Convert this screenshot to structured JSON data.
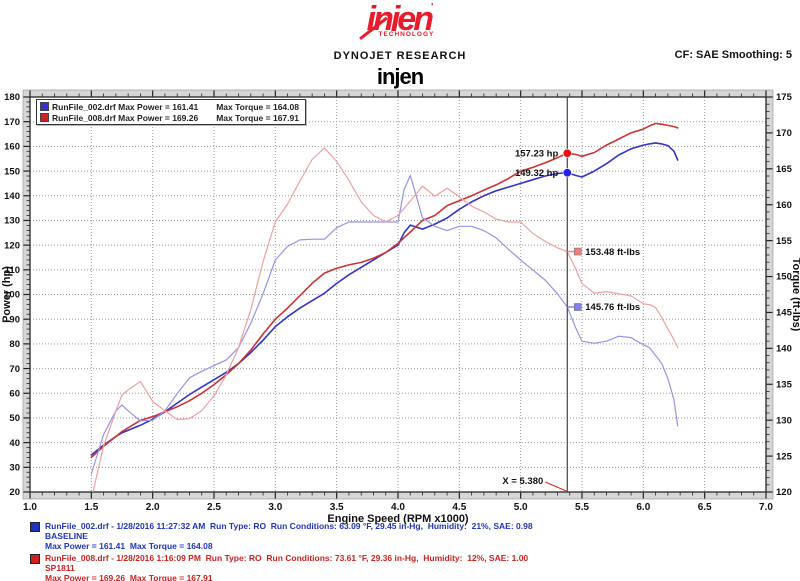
{
  "header": {
    "logo_brand": "injen",
    "logo_tm": "'",
    "logo_sub": "TECHNOLOGY",
    "dynojet": "DYNOJET RESEARCH",
    "cf_label": "CF: SAE  Smoothing: 5",
    "graph_title": "injen"
  },
  "chart_data": {
    "type": "line",
    "title": "injen",
    "xlabel": "Engine Speed (RPM x1000)",
    "ylabel_left": "Power (hp)",
    "ylabel_right": "Torque (ft-lbs)",
    "x_range": [
      1.0,
      7.0
    ],
    "x_major_step": 0.5,
    "x_minor_step": 0.1,
    "y_left_range": [
      20,
      180
    ],
    "y_left_major_step": 10,
    "y_left_minor_step": 2,
    "y_right_range": [
      120,
      175
    ],
    "y_right_major_step": 5,
    "y_right_minor_step": 1,
    "grid": "dotted",
    "cursor_x": 5.38,
    "cursor_label": "X = 5.380",
    "colors": {
      "power_baseline": "#3333cc",
      "power_sp1811": "#cc3333",
      "torque_baseline": "#9494e8",
      "torque_sp1811": "#efa0a0",
      "grid": "#999999",
      "cursor": "#444444",
      "band_fill": "#d6d6d6",
      "frame": "#333333"
    },
    "legend": [
      {
        "color": "#3333cc",
        "label_power": "RunFile_002.drf Max Power = 161.41",
        "label_torque": "Max Torque = 164.08"
      },
      {
        "color": "#cc2222",
        "label_power": "RunFile_008.drf Max Power = 169.26",
        "label_torque": "Max Torque = 167.91"
      }
    ],
    "series": [
      {
        "name": "power_baseline",
        "axis": "left",
        "color": "#3333cc",
        "width": 1.6,
        "x": [
          1.5,
          1.6,
          1.7,
          1.75,
          1.8,
          1.9,
          2.0,
          2.1,
          2.2,
          2.3,
          2.4,
          2.5,
          2.6,
          2.7,
          2.8,
          2.9,
          3.0,
          3.1,
          3.2,
          3.3,
          3.4,
          3.5,
          3.6,
          3.7,
          3.8,
          3.9,
          4.0,
          4.05,
          4.1,
          4.2,
          4.3,
          4.4,
          4.5,
          4.6,
          4.7,
          4.8,
          4.9,
          5.0,
          5.1,
          5.2,
          5.3,
          5.38,
          5.45,
          5.5,
          5.6,
          5.7,
          5.8,
          5.9,
          6.0,
          6.05,
          6.1,
          6.15,
          6.2,
          6.25,
          6.28
        ],
        "y": [
          35,
          39,
          42.5,
          44,
          45,
          47,
          49.5,
          52.5,
          56,
          59.5,
          62.5,
          65.5,
          68.5,
          72,
          76.5,
          81.5,
          87,
          91,
          94.5,
          97.5,
          100.5,
          104.5,
          108,
          111,
          114,
          117,
          120,
          125,
          128.1,
          126.5,
          128.5,
          131,
          134.5,
          137.5,
          140,
          142,
          143.5,
          145,
          146.5,
          148,
          149,
          149.32,
          148.2,
          147.6,
          150,
          153,
          156.5,
          159,
          160.5,
          161,
          161.41,
          161,
          160.3,
          158,
          154.5
        ]
      },
      {
        "name": "power_sp1811",
        "axis": "left",
        "color": "#cc3333",
        "width": 1.6,
        "x": [
          1.5,
          1.6,
          1.7,
          1.75,
          1.8,
          1.9,
          2.0,
          2.1,
          2.2,
          2.3,
          2.4,
          2.5,
          2.6,
          2.7,
          2.8,
          2.9,
          3.0,
          3.1,
          3.2,
          3.3,
          3.4,
          3.5,
          3.6,
          3.7,
          3.8,
          3.9,
          4.0,
          4.05,
          4.1,
          4.2,
          4.3,
          4.4,
          4.5,
          4.6,
          4.7,
          4.8,
          4.9,
          5.0,
          5.1,
          5.2,
          5.3,
          5.38,
          5.45,
          5.5,
          5.6,
          5.7,
          5.8,
          5.9,
          6.0,
          6.05,
          6.1,
          6.15,
          6.2,
          6.25,
          6.28
        ],
        "y": [
          34,
          38.5,
          42.5,
          44.5,
          46,
          49,
          50.5,
          52.5,
          54.5,
          57,
          60,
          63.5,
          67.5,
          72,
          77.5,
          84,
          90,
          94.5,
          99.5,
          104.5,
          108.66,
          110.6,
          112,
          113,
          114.7,
          117,
          120.7,
          123,
          125.3,
          130,
          132,
          136,
          138,
          140,
          142.3,
          144.4,
          147,
          150,
          151.5,
          153.4,
          155.4,
          157.23,
          156.7,
          156,
          157.5,
          160.5,
          163,
          165.5,
          167,
          168.3,
          169.26,
          169,
          168.5,
          168,
          167.5
        ]
      },
      {
        "name": "torque_baseline",
        "axis": "right",
        "color": "#9494e8",
        "width": 1.2,
        "x": [
          1.5,
          1.6,
          1.7,
          1.75,
          1.8,
          1.9,
          2.0,
          2.1,
          2.2,
          2.3,
          2.4,
          2.5,
          2.6,
          2.7,
          2.8,
          2.9,
          3.0,
          3.1,
          3.2,
          3.3,
          3.4,
          3.5,
          3.6,
          3.7,
          3.8,
          3.9,
          4.0,
          4.05,
          4.1,
          4.2,
          4.3,
          4.4,
          4.5,
          4.6,
          4.7,
          4.8,
          4.9,
          5.0,
          5.1,
          5.2,
          5.3,
          5.38,
          5.45,
          5.5,
          5.6,
          5.7,
          5.8,
          5.9,
          6.0,
          6.05,
          6.1,
          6.15,
          6.2,
          6.25,
          6.28
        ],
        "y": [
          122.5,
          128.0,
          131.3,
          132.1,
          131.3,
          129.9,
          130.0,
          131.3,
          133.7,
          135.9,
          136.8,
          137.6,
          138.4,
          140.1,
          143.5,
          147.6,
          152.3,
          154.2,
          155.1,
          155.2,
          155.2,
          156.8,
          157.6,
          157.6,
          157.6,
          157.6,
          157.6,
          162.1,
          164.08,
          158.2,
          157.0,
          156.4,
          157.0,
          157.0,
          156.4,
          155.4,
          153.8,
          152.3,
          150.9,
          149.5,
          147.6,
          145.76,
          142.8,
          141.0,
          140.7,
          141.0,
          141.7,
          141.5,
          140.5,
          140.1,
          139.0,
          137.9,
          135.8,
          132.8,
          129.2
        ]
      },
      {
        "name": "torque_sp1811",
        "axis": "right",
        "color": "#efa0a0",
        "width": 1.2,
        "x": [
          1.5,
          1.6,
          1.7,
          1.75,
          1.8,
          1.9,
          2.0,
          2.1,
          2.2,
          2.3,
          2.4,
          2.5,
          2.6,
          2.7,
          2.8,
          2.9,
          3.0,
          3.1,
          3.2,
          3.3,
          3.4,
          3.5,
          3.6,
          3.7,
          3.8,
          3.9,
          4.0,
          4.05,
          4.1,
          4.2,
          4.3,
          4.4,
          4.5,
          4.6,
          4.7,
          4.8,
          4.9,
          5.0,
          5.1,
          5.2,
          5.3,
          5.38,
          5.45,
          5.5,
          5.6,
          5.7,
          5.8,
          5.9,
          6.0,
          6.05,
          6.1,
          6.15,
          6.2,
          6.25,
          6.28
        ],
        "y": [
          119.0,
          126.4,
          131.3,
          133.5,
          134.2,
          135.4,
          132.6,
          131.3,
          130.1,
          130.2,
          131.3,
          133.4,
          136.3,
          140.1,
          145.4,
          152.1,
          157.6,
          160.1,
          163.3,
          166.3,
          167.91,
          166.0,
          163.4,
          160.4,
          158.5,
          157.6,
          158.5,
          159.5,
          160.5,
          162.6,
          161.2,
          162.3,
          161.1,
          159.8,
          159.0,
          158.0,
          157.6,
          157.6,
          156.0,
          154.9,
          154.0,
          153.48,
          151.0,
          149.0,
          147.7,
          147.9,
          147.6,
          147.3,
          146.2,
          146.1,
          145.7,
          144.3,
          142.7,
          141.2,
          140.1
        ]
      }
    ],
    "annotations": [
      {
        "text": "157.23 hp",
        "marker": "circle",
        "marker_color": "#ee1111",
        "axis": "left",
        "x": 5.38,
        "y": 157.23,
        "side": "left"
      },
      {
        "text": "149.32 hp",
        "marker": "circle",
        "marker_color": "#2222ee",
        "axis": "left",
        "x": 5.38,
        "y": 149.32,
        "side": "left"
      },
      {
        "text": "153.48 ft-lbs",
        "marker": "square",
        "marker_color": "#f08080",
        "axis": "right",
        "x": 5.38,
        "y": 153.48,
        "side": "right"
      },
      {
        "text": "145.76 ft-lbs",
        "marker": "square",
        "marker_color": "#8080f0",
        "axis": "right",
        "x": 5.38,
        "y": 145.76,
        "side": "right"
      }
    ]
  },
  "footer_runs": [
    {
      "color": "#2233bb",
      "line1": "RunFile_002.drf - 1/28/2016 11:27:32 AM  Run Type: RO  Run Conditions: 63.09 °F, 29.45 in-Hg,  Humidity:  21%, SAE: 0.98",
      "line2": "BASELINE",
      "line3": "Max Power = 161.41  Max Torque = 164.08"
    },
    {
      "color": "#cc2222",
      "line1": "RunFile_008.drf - 1/28/2016 1:16:09 PM  Run Type: RO  Run Conditions: 73.61 °F, 29.36 in-Hg,  Humidity:  12%, SAE: 1.00",
      "line2": "SP1811",
      "line3": "Max Power = 169.26  Max Torque = 167.91"
    }
  ]
}
